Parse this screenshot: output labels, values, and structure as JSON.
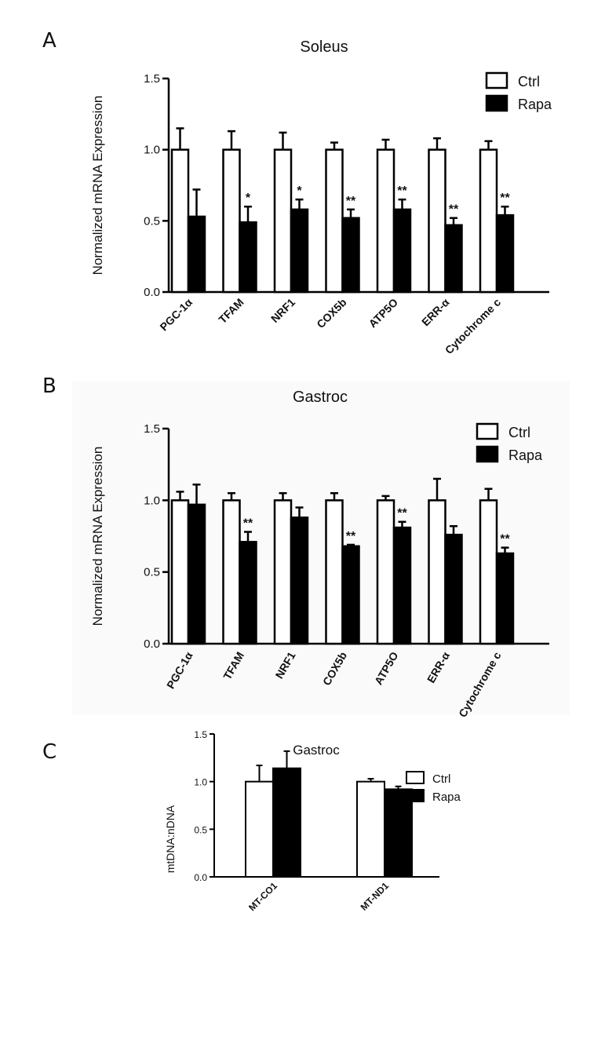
{
  "chart_data": [
    {
      "panel": "A",
      "type": "bar",
      "title": "Soleus",
      "xlabel": "",
      "ylabel": "Normalized mRNA Expression",
      "ylim": [
        0,
        1.5
      ],
      "yticks": [
        "0.0",
        "0.5",
        "1.0",
        "1.5"
      ],
      "categories": [
        "PGC-1α",
        "TFAM",
        "NRF1",
        "COX5b",
        "ATP5O",
        "ERR-α",
        "Cytochrome c"
      ],
      "series": [
        {
          "name": "Ctrl",
          "values": [
            1.0,
            1.0,
            1.0,
            1.0,
            1.0,
            1.0,
            1.0
          ],
          "errors": [
            0.15,
            0.13,
            0.12,
            0.05,
            0.07,
            0.08,
            0.06
          ],
          "color": "#ffffff"
        },
        {
          "name": "Rapa",
          "values": [
            0.53,
            0.49,
            0.58,
            0.52,
            0.58,
            0.47,
            0.54
          ],
          "errors": [
            0.19,
            0.11,
            0.07,
            0.06,
            0.07,
            0.05,
            0.06
          ],
          "color": "#000000"
        }
      ],
      "significance": [
        "",
        "*",
        "*",
        "**",
        "**",
        "**",
        "**"
      ],
      "legend_position": "top-right"
    },
    {
      "panel": "B",
      "type": "bar",
      "title": "Gastroc",
      "xlabel": "",
      "ylabel": "Normalized mRNA Expression",
      "ylim": [
        0,
        1.5
      ],
      "yticks": [
        "0.0",
        "0.5",
        "1.0",
        "1.5"
      ],
      "categories": [
        "PGC-1α",
        "TFAM",
        "NRF1",
        "COX5b",
        "ATP5O",
        "ERR-α",
        "Cytochrome c"
      ],
      "series": [
        {
          "name": "Ctrl",
          "values": [
            1.0,
            1.0,
            1.0,
            1.0,
            1.0,
            1.0,
            1.0
          ],
          "errors": [
            0.06,
            0.05,
            0.05,
            0.05,
            0.03,
            0.15,
            0.08
          ],
          "color": "#ffffff"
        },
        {
          "name": "Rapa",
          "values": [
            0.97,
            0.71,
            0.88,
            0.68,
            0.81,
            0.76,
            0.63
          ],
          "errors": [
            0.14,
            0.07,
            0.07,
            0.01,
            0.04,
            0.06,
            0.04
          ],
          "color": "#000000"
        }
      ],
      "significance": [
        "",
        "**",
        "",
        "**",
        "**",
        "",
        "**"
      ],
      "legend_position": "top-right"
    },
    {
      "panel": "C",
      "type": "bar",
      "title": "Gastroc",
      "xlabel": "",
      "ylabel": "mtDNA:nDNA",
      "ylim": [
        0,
        1.5
      ],
      "yticks": [
        "0.0",
        "0.5",
        "1.0",
        "1.5"
      ],
      "categories": [
        "MT-CO1",
        "MT-ND1"
      ],
      "series": [
        {
          "name": "Ctrl",
          "values": [
            1.0,
            1.0
          ],
          "errors": [
            0.17,
            0.03
          ],
          "color": "#ffffff"
        },
        {
          "name": "Rapa",
          "values": [
            1.14,
            0.92
          ],
          "errors": [
            0.18,
            0.03
          ],
          "color": "#000000"
        }
      ],
      "significance": [
        "",
        ""
      ],
      "legend_position": "top-right"
    }
  ]
}
